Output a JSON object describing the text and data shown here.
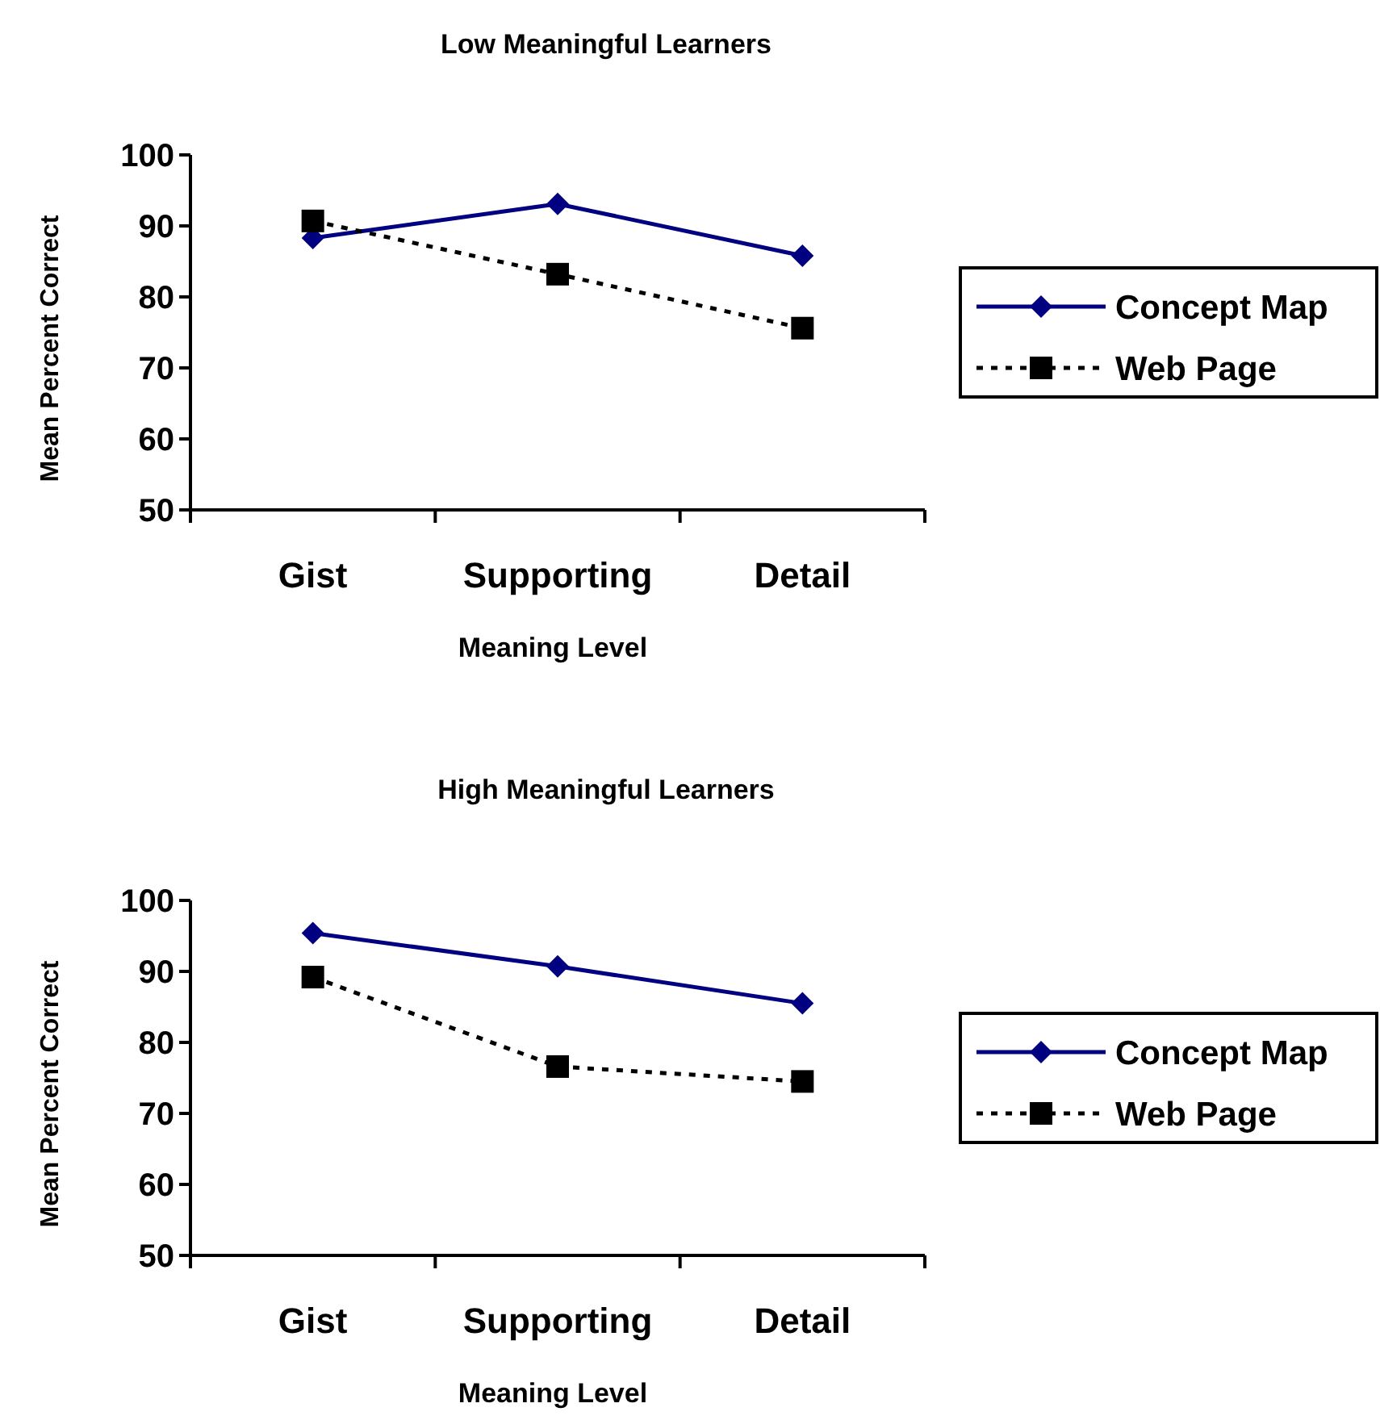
{
  "chart_data": [
    {
      "type": "line",
      "title": "Low Meaningful Learners",
      "xlabel": "Meaning Level",
      "ylabel": "Mean Percent Correct",
      "categories": [
        "Gist",
        "Supporting",
        "Detail"
      ],
      "ylim": [
        50,
        100
      ],
      "yticks": [
        50,
        60,
        70,
        80,
        90,
        100
      ],
      "grid": false,
      "legend": "right",
      "series": [
        {
          "name": "Concept Map",
          "color": "#000080",
          "marker": "diamond",
          "line_style": "solid",
          "values": [
            88.3,
            93.1,
            85.8
          ]
        },
        {
          "name": "Web Page",
          "color": "#000000",
          "marker": "square",
          "line_style": "dashed",
          "values": [
            90.7,
            83.2,
            75.6
          ]
        }
      ]
    },
    {
      "type": "line",
      "title": "High Meaningful Learners",
      "xlabel": "Meaning Level",
      "ylabel": "Mean Percent Correct",
      "categories": [
        "Gist",
        "Supporting",
        "Detail"
      ],
      "ylim": [
        50,
        100
      ],
      "yticks": [
        50,
        60,
        70,
        80,
        90,
        100
      ],
      "grid": false,
      "legend": "right",
      "series": [
        {
          "name": "Concept Map",
          "color": "#000080",
          "marker": "diamond",
          "line_style": "solid",
          "values": [
            95.4,
            90.7,
            85.5
          ]
        },
        {
          "name": "Web Page",
          "color": "#000000",
          "marker": "square",
          "line_style": "dashed",
          "values": [
            89.2,
            76.6,
            74.5
          ]
        }
      ]
    }
  ]
}
